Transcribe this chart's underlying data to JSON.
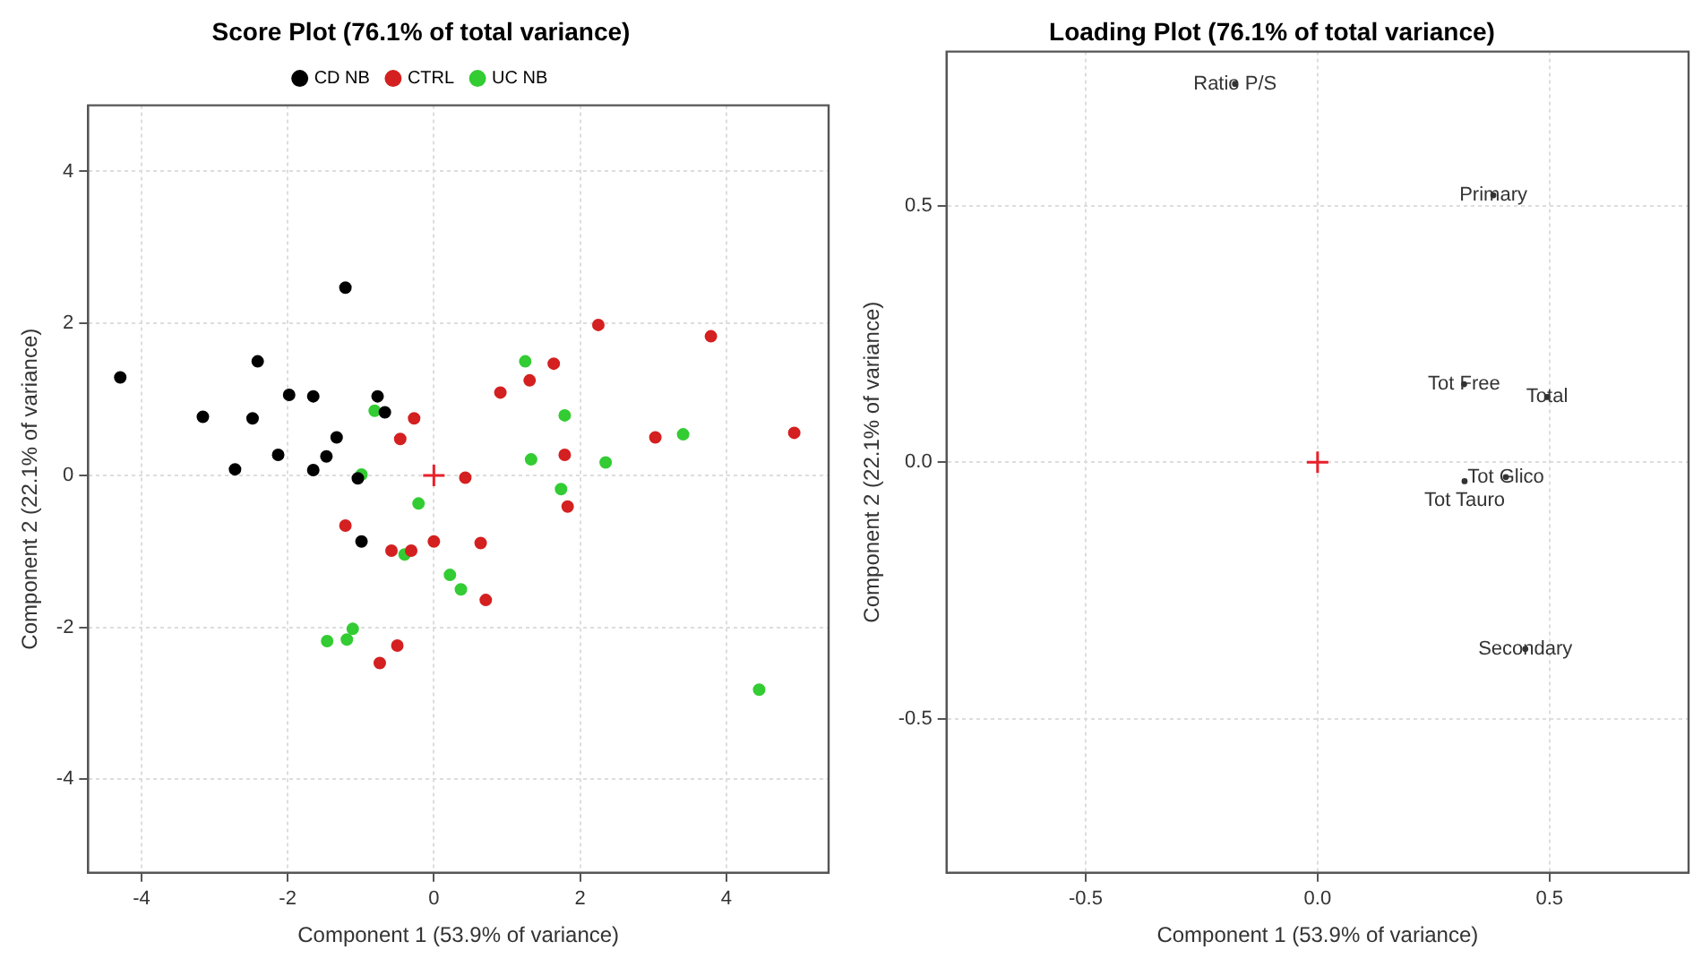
{
  "chart_data": [
    {
      "type": "scatter",
      "title": "Score Plot (76.1% of total variance)",
      "xlabel": "Component 1 (53.9% of variance)",
      "ylabel": "Component 2 (22.1% of variance)",
      "xlim": [
        -4.73,
        5.4
      ],
      "ylim": [
        -5.23,
        4.87
      ],
      "xticks": [
        -4,
        -2,
        0,
        2,
        4
      ],
      "yticks": [
        -4,
        -2,
        0,
        2,
        4
      ],
      "grid": true,
      "legend": "top",
      "marker": "circle",
      "series": [
        {
          "name": "CD NB",
          "color": "#000000",
          "x": [
            -4.29,
            -1.21,
            -2.41,
            -1.98,
            -1.65,
            -0.77,
            -3.16,
            -2.48,
            -0.67,
            -1.33,
            -2.13,
            -1.47,
            -2.72,
            -1.65,
            -1.04,
            -0.99
          ],
          "values": [
            1.29,
            2.47,
            1.5,
            1.06,
            1.04,
            1.04,
            0.77,
            0.75,
            0.83,
            0.5,
            0.27,
            0.25,
            0.08,
            0.07,
            -0.04,
            -0.87
          ]
        },
        {
          "name": "CTRL",
          "color": "#d42020",
          "x": [
            2.25,
            3.79,
            1.64,
            1.31,
            0.91,
            -0.27,
            -0.46,
            3.03,
            4.93,
            1.79,
            0.43,
            1.83,
            -1.21,
            -0.58,
            -0.31,
            0,
            0.64,
            0.71,
            -0.5,
            -0.74
          ],
          "values": [
            1.98,
            1.83,
            1.47,
            1.25,
            1.09,
            0.75,
            0.48,
            0.5,
            0.56,
            0.27,
            -0.03,
            -0.41,
            -0.66,
            -0.99,
            -0.99,
            -0.87,
            -0.89,
            -1.64,
            -2.24,
            -2.47
          ]
        },
        {
          "name": "UC NB",
          "color": "#33cc33",
          "x": [
            1.25,
            -0.81,
            1.79,
            3.41,
            1.33,
            2.35,
            -0.99,
            1.74,
            -0.21,
            -0.4,
            0.22,
            0.37,
            -1.11,
            -1.19,
            -1.46,
            4.45
          ],
          "values": [
            1.5,
            0.85,
            0.79,
            0.54,
            0.21,
            0.17,
            0.01,
            -0.18,
            -0.37,
            -1.04,
            -1.31,
            -1.5,
            -2.02,
            -2.16,
            -2.18,
            -2.82
          ]
        },
        {
          "color": "#e8202a",
          "marker": "cross",
          "x": [
            0
          ],
          "values": [
            0
          ]
        }
      ]
    },
    {
      "type": "scatter",
      "title": "Loading Plot (76.1% of total variance)",
      "xlabel": "Component 1 (53.9% of variance)",
      "ylabel": "Component 2 (22.1% of variance)",
      "xlim": [
        -0.8,
        0.8
      ],
      "ylim": [
        -0.8,
        0.8
      ],
      "xticks": [
        -0.5,
        {
          "value": 0,
          "label": "0.0"
        },
        0.5
      ],
      "yticks": [
        -0.5,
        {
          "value": 0,
          "label": "0.0"
        },
        0.5
      ],
      "grid": true,
      "series": [
        {
          "color": "#e8202a",
          "marker": "cross",
          "x": [
            0
          ],
          "values": [
            0
          ]
        },
        {
          "color": "#333333",
          "marker": "circle",
          "x": [
            -0.178,
            0.379,
            0.316,
            0.495,
            0.406,
            0.317,
            0.448
          ],
          "values": [
            0.737,
            0.52,
            0.152,
            0.127,
            -0.029,
            -0.037,
            -0.364
          ],
          "value_labels": [
            "Ratio P/S",
            "Primary",
            "Tot Free",
            "Total",
            "Tot Glico",
            "Tot Tauro",
            "Secondary"
          ]
        }
      ]
    }
  ]
}
